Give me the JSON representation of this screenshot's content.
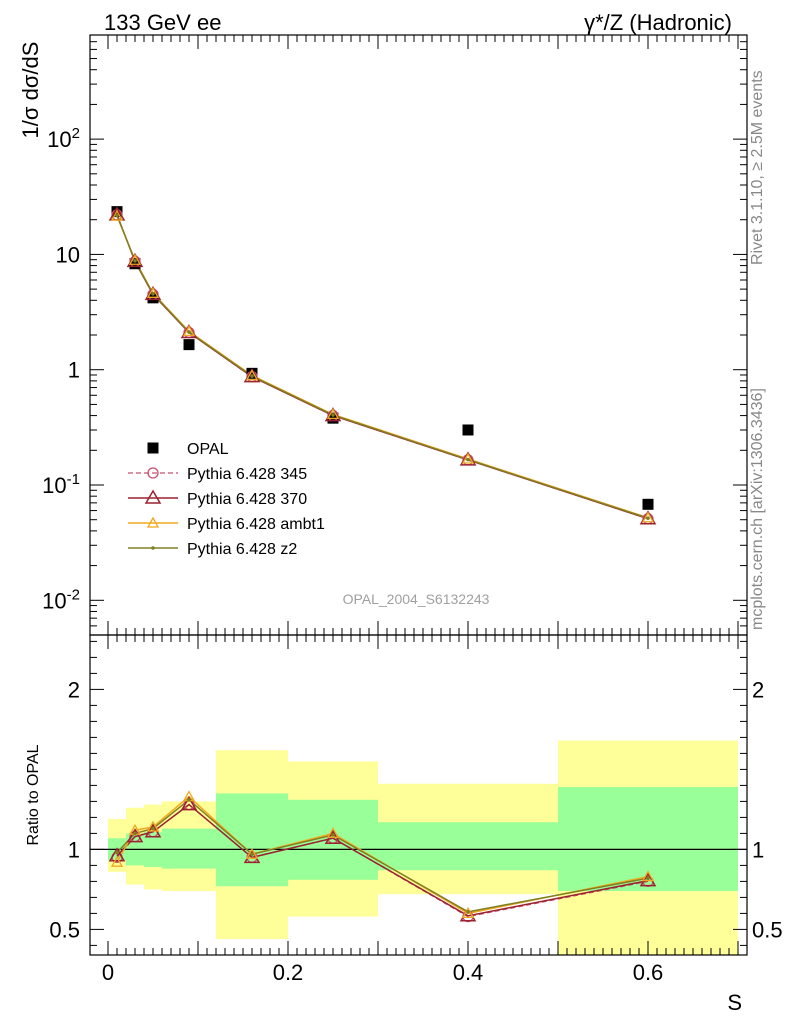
{
  "header": {
    "left": "133 GeV ee",
    "right": "γ*/Z (Hadronic)"
  },
  "side_labels": {
    "rivet": "Rivet 3.1.10, ≥ 2.5M events",
    "mcplots": "mcplots.cern.ch [arXiv:1306.3436]"
  },
  "watermark": "OPAL_2004_S6132243",
  "colors": {
    "data": "#000000",
    "py345": "#c8506e",
    "py370": "#9b2230",
    "ambt1": "#f0a820",
    "z2": "#808020",
    "band_yellow": "#ffff99",
    "band_green": "#99ff99"
  },
  "chart_data": [
    {
      "type": "scatter",
      "role": "main",
      "ylabel": "1/σ dσ/dS",
      "yscale": "log",
      "ylim": [
        0.005,
        800
      ],
      "xlim": [
        -0.02,
        0.71
      ],
      "ytick_labels": [
        "10^-2",
        "10^-1",
        "1",
        "10",
        "10^2"
      ],
      "series": [
        {
          "name": "OPAL",
          "marker": "square",
          "x": [
            0.01,
            0.03,
            0.05,
            0.09,
            0.16,
            0.25,
            0.4,
            0.6
          ],
          "y": [
            23.5,
            8.3,
            4.2,
            1.65,
            0.93,
            0.38,
            0.3,
            0.068
          ]
        },
        {
          "name": "Pythia 6.428 345",
          "marker": "circle",
          "x": [
            0.01,
            0.03,
            0.05,
            0.09,
            0.16,
            0.25,
            0.4,
            0.6
          ],
          "y": [
            22.0,
            8.7,
            4.5,
            2.1,
            0.87,
            0.4,
            0.165,
            0.051
          ]
        },
        {
          "name": "Pythia 6.428 370",
          "marker": "triangle",
          "x": [
            0.01,
            0.03,
            0.05,
            0.09,
            0.16,
            0.25,
            0.4,
            0.6
          ],
          "y": [
            22.0,
            8.7,
            4.5,
            2.1,
            0.87,
            0.4,
            0.165,
            0.051
          ]
        },
        {
          "name": "Pythia 6.428 ambt1",
          "marker": "triangle-small",
          "x": [
            0.01,
            0.03,
            0.05,
            0.09,
            0.16,
            0.25,
            0.4,
            0.6
          ],
          "y": [
            21.5,
            8.9,
            4.6,
            2.15,
            0.89,
            0.41,
            0.168,
            0.052
          ]
        },
        {
          "name": "Pythia 6.428 z2",
          "marker": "dot",
          "x": [
            0.01,
            0.03,
            0.05,
            0.09,
            0.16,
            0.25,
            0.4,
            0.6
          ],
          "y": [
            21.8,
            8.8,
            4.55,
            2.12,
            0.88,
            0.405,
            0.166,
            0.0515
          ]
        }
      ]
    },
    {
      "type": "line",
      "role": "ratio",
      "ylabel": "Ratio to OPAL",
      "xlabel": "S",
      "ylim": [
        0.34,
        2.34
      ],
      "xlim": [
        -0.02,
        0.71
      ],
      "xtick_labels": [
        "0",
        "0.2",
        "0.4",
        "0.6"
      ],
      "ytick_labels": [
        "0.5",
        "1",
        "2"
      ],
      "bands": [
        {
          "x0": 0.0,
          "x1": 0.02,
          "green": [
            0.93,
            1.07
          ],
          "yellow": [
            0.86,
            1.19
          ]
        },
        {
          "x0": 0.02,
          "x1": 0.04,
          "green": [
            0.9,
            1.1
          ],
          "yellow": [
            0.78,
            1.26
          ]
        },
        {
          "x0": 0.04,
          "x1": 0.06,
          "green": [
            0.89,
            1.11
          ],
          "yellow": [
            0.75,
            1.28
          ]
        },
        {
          "x0": 0.06,
          "x1": 0.12,
          "green": [
            0.88,
            1.13
          ],
          "yellow": [
            0.74,
            1.3
          ]
        },
        {
          "x0": 0.12,
          "x1": 0.2,
          "green": [
            0.77,
            1.35
          ],
          "yellow": [
            0.44,
            1.62
          ]
        },
        {
          "x0": 0.2,
          "x1": 0.3,
          "green": [
            0.81,
            1.31
          ],
          "yellow": [
            0.58,
            1.55
          ]
        },
        {
          "x0": 0.3,
          "x1": 0.5,
          "green": [
            0.87,
            1.17
          ],
          "yellow": [
            0.72,
            1.41
          ]
        },
        {
          "x0": 0.5,
          "x1": 0.7,
          "green": [
            0.74,
            1.39
          ],
          "yellow": [
            0.3,
            1.68
          ]
        }
      ],
      "series": [
        {
          "name": "Pythia 6.428 345",
          "x": [
            0.01,
            0.03,
            0.05,
            0.09,
            0.16,
            0.25,
            0.4,
            0.6
          ],
          "y": [
            0.95,
            1.08,
            1.11,
            1.28,
            0.95,
            1.07,
            0.58,
            0.8
          ]
        },
        {
          "name": "Pythia 6.428 370",
          "x": [
            0.01,
            0.03,
            0.05,
            0.09,
            0.16,
            0.25,
            0.4,
            0.6
          ],
          "y": [
            0.96,
            1.08,
            1.11,
            1.28,
            0.95,
            1.07,
            0.585,
            0.805
          ]
        },
        {
          "name": "Pythia 6.428 ambt1",
          "x": [
            0.01,
            0.03,
            0.05,
            0.09,
            0.16,
            0.25,
            0.4,
            0.6
          ],
          "y": [
            0.92,
            1.12,
            1.14,
            1.33,
            0.97,
            1.1,
            0.6,
            0.83
          ]
        },
        {
          "name": "Pythia 6.428 z2",
          "x": [
            0.01,
            0.03,
            0.05,
            0.09,
            0.16,
            0.25,
            0.4,
            0.6
          ],
          "y": [
            0.98,
            1.1,
            1.13,
            1.31,
            0.97,
            1.09,
            0.61,
            0.82
          ]
        }
      ]
    }
  ]
}
